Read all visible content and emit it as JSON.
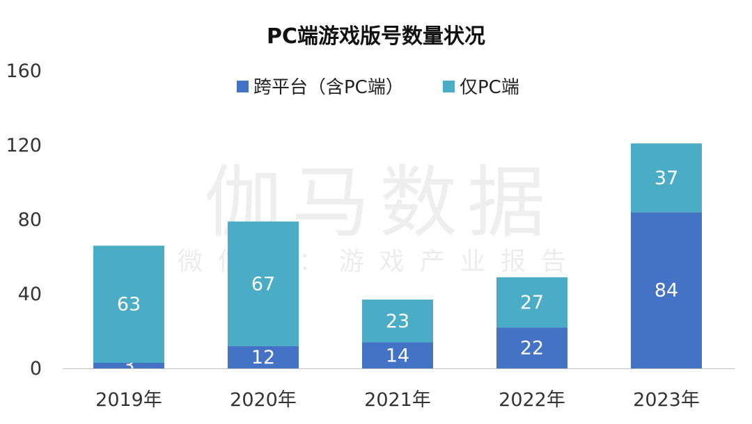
{
  "chart_data": {
    "type": "bar",
    "stacked": true,
    "title": "PC端游戏版号数量状况",
    "categories": [
      "2019年",
      "2020年",
      "2021年",
      "2022年",
      "2023年"
    ],
    "series": [
      {
        "name": "跨平台（含PC端）",
        "color": "#4472C4",
        "values": [
          3,
          12,
          14,
          22,
          84
        ]
      },
      {
        "name": "仅PC端",
        "color": "#4BACC6",
        "values": [
          63,
          67,
          23,
          27,
          37
        ]
      }
    ],
    "ylim": [
      0,
      160
    ],
    "yticks": [
      "0",
      "40",
      "80",
      "120",
      "160"
    ],
    "grid": false,
    "legend_position": "top"
  },
  "watermark": {
    "main": "伽马数据",
    "sub": "微信号：游戏产业报告"
  }
}
